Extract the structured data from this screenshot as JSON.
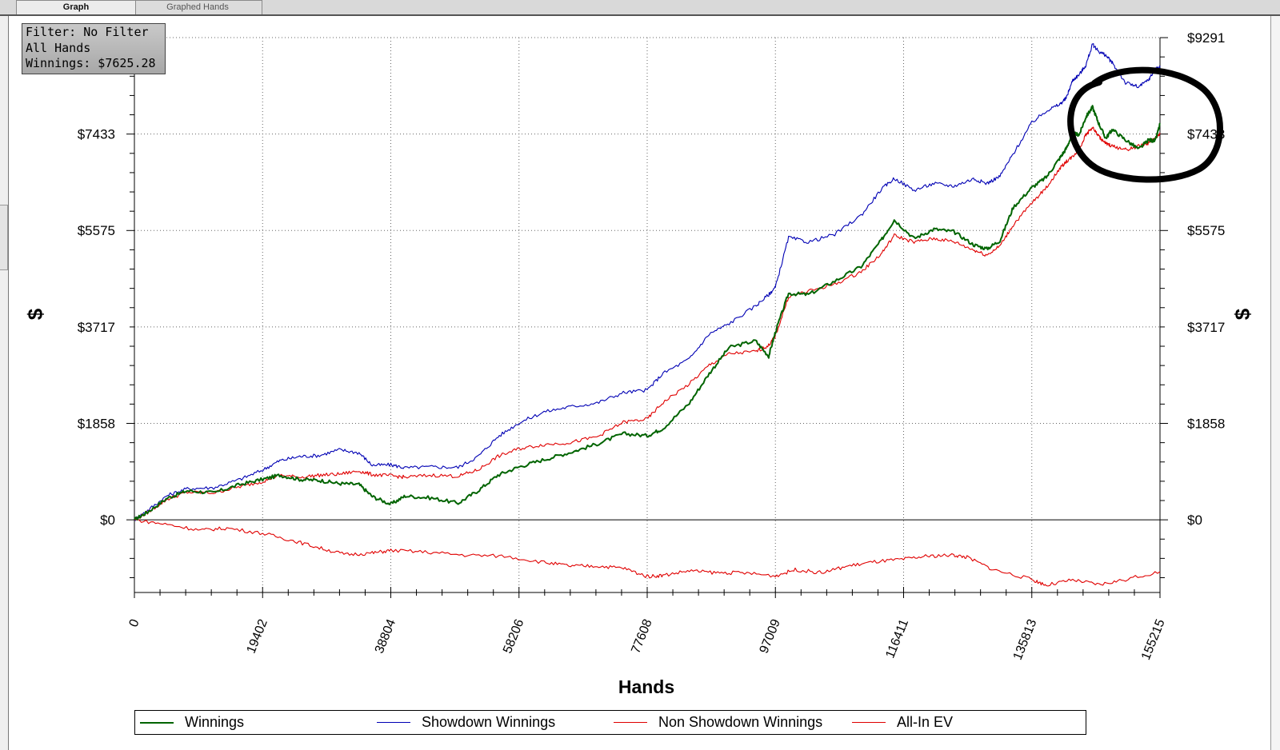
{
  "tabs": [
    {
      "label": "Graph",
      "active": true
    },
    {
      "label": "Graphed Hands",
      "active": false
    }
  ],
  "infobox": {
    "filter": "Filter: No Filter",
    "hands": "All Hands",
    "winnings": "Winnings: $7625.28"
  },
  "chart_data": {
    "type": "line",
    "xlabel": "Hands",
    "ylabel": "$",
    "xlim": [
      0,
      155215
    ],
    "ylim": [
      -1400,
      9291
    ],
    "x_ticks": [
      0,
      19402,
      38804,
      58206,
      77608,
      97009,
      116411,
      135813,
      155215
    ],
    "x_tick_labels": [
      "0",
      "19402",
      "38804",
      "58206",
      "77608",
      "97009",
      "116411",
      "135813",
      "155215"
    ],
    "y_ticks": [
      0,
      1858,
      3717,
      5575,
      7433,
      9291
    ],
    "y_tick_labels": [
      "$0",
      "$1858",
      "$3717",
      "$5575",
      "$7433",
      "$9291"
    ],
    "grid": true,
    "legend_position": "bottom",
    "series": [
      {
        "name": "Winnings",
        "color": "#006400",
        "x": [
          0,
          2000,
          5000,
          8000,
          12000,
          16000,
          19402,
          22000,
          25000,
          28000,
          31000,
          34000,
          36000,
          38804,
          41000,
          45000,
          49000,
          52000,
          55000,
          58206,
          62000,
          66000,
          70000,
          74000,
          77608,
          80000,
          84000,
          87000,
          90000,
          94000,
          96000,
          97009,
          99000,
          102000,
          106000,
          110000,
          113000,
          115000,
          118000,
          121000,
          124000,
          127000,
          129000,
          131000,
          133000,
          135813,
          138000,
          140000,
          141000,
          142000,
          143000,
          144000,
          145000,
          146000,
          147000,
          148000,
          150000,
          152000,
          153500,
          154500,
          155215
        ],
        "y": [
          0,
          150,
          420,
          560,
          520,
          680,
          780,
          860,
          780,
          760,
          700,
          680,
          450,
          300,
          460,
          420,
          320,
          560,
          860,
          1020,
          1160,
          1300,
          1460,
          1660,
          1620,
          1760,
          2250,
          2820,
          3320,
          3450,
          3150,
          3620,
          4360,
          4340,
          4600,
          4880,
          5380,
          5780,
          5420,
          5600,
          5550,
          5300,
          5220,
          5380,
          6020,
          6400,
          6600,
          6960,
          7150,
          7440,
          7420,
          7760,
          7950,
          7620,
          7350,
          7520,
          7320,
          7140,
          7320,
          7300,
          7625
        ]
      },
      {
        "name": "Showdown Winnings",
        "color": "#0000b4",
        "x": [
          0,
          2000,
          5000,
          8000,
          12000,
          16000,
          19402,
          22000,
          25000,
          28000,
          31000,
          34000,
          36000,
          38804,
          41000,
          45000,
          49000,
          52000,
          55000,
          58206,
          62000,
          66000,
          70000,
          74000,
          77608,
          80000,
          84000,
          87000,
          90000,
          94000,
          96000,
          97009,
          99000,
          102000,
          106000,
          110000,
          113000,
          115000,
          118000,
          121000,
          124000,
          127000,
          129000,
          131000,
          133000,
          135813,
          138000,
          140000,
          141000,
          142000,
          143000,
          144000,
          145000,
          146000,
          147000,
          148000,
          150000,
          152000,
          153500,
          154500,
          155215
        ],
        "y": [
          0,
          180,
          470,
          600,
          620,
          780,
          960,
          1140,
          1220,
          1240,
          1350,
          1290,
          1050,
          1060,
          1000,
          1020,
          1010,
          1220,
          1600,
          1870,
          2080,
          2180,
          2250,
          2450,
          2500,
          2820,
          3100,
          3580,
          3780,
          4120,
          4340,
          4480,
          5440,
          5350,
          5500,
          5870,
          6360,
          6580,
          6350,
          6480,
          6430,
          6570,
          6480,
          6620,
          7050,
          7650,
          7880,
          8000,
          8120,
          8470,
          8580,
          8760,
          9160,
          9020,
          8950,
          8800,
          8420,
          8340,
          8480,
          8680,
          8720
        ]
      },
      {
        "name": "Non Showdown Winnings",
        "color": "#e00000",
        "x": [
          0,
          2000,
          5000,
          8000,
          12000,
          16000,
          19402,
          22000,
          25000,
          28000,
          31000,
          34000,
          36000,
          38804,
          41000,
          45000,
          49000,
          52000,
          55000,
          58206,
          62000,
          66000,
          70000,
          74000,
          77608,
          80000,
          84000,
          87000,
          90000,
          94000,
          96000,
          97009,
          99000,
          102000,
          106000,
          110000,
          113000,
          115000,
          118000,
          121000,
          124000,
          127000,
          129000,
          131000,
          133000,
          135813,
          138000,
          140000,
          141000,
          142000,
          143000,
          144000,
          145000,
          146000,
          147000,
          148000,
          150000,
          152000,
          153500,
          154500,
          155215
        ],
        "y": [
          0,
          140,
          400,
          530,
          520,
          640,
          740,
          860,
          820,
          860,
          880,
          940,
          870,
          850,
          820,
          860,
          840,
          960,
          1220,
          1370,
          1450,
          1490,
          1600,
          1880,
          1940,
          2260,
          2620,
          2980,
          3200,
          3240,
          3360,
          3540,
          4300,
          4400,
          4540,
          4780,
          5120,
          5480,
          5350,
          5420,
          5360,
          5200,
          5100,
          5280,
          5680,
          6100,
          6400,
          6760,
          6900,
          7000,
          7150,
          7420,
          7560,
          7380,
          7250,
          7200,
          7130,
          7200,
          7260,
          7350,
          7430
        ]
      },
      {
        "name": "All-In EV",
        "color": "#e00000",
        "x": [
          0,
          5000,
          10000,
          14000,
          19402,
          24000,
          28000,
          32000,
          36000,
          38804,
          44000,
          50000,
          56000,
          62000,
          66000,
          70000,
          74000,
          77608,
          80000,
          84000,
          88000,
          92000,
          97009,
          100000,
          104000,
          108000,
          112000,
          116411,
          120000,
          124000,
          126000,
          130000,
          135813,
          138000,
          142000,
          146000,
          150000,
          155215
        ],
        "y": [
          0,
          -90,
          -200,
          -160,
          -260,
          -400,
          -540,
          -670,
          -640,
          -590,
          -620,
          -680,
          -700,
          -820,
          -890,
          -890,
          -930,
          -1090,
          -1070,
          -980,
          -1020,
          -1020,
          -1080,
          -960,
          -1020,
          -890,
          -810,
          -760,
          -700,
          -680,
          -720,
          -960,
          -1150,
          -1260,
          -1160,
          -1250,
          -1150,
          -1000
        ]
      }
    ]
  },
  "legend": [
    {
      "label": "Winnings",
      "color": "#006400"
    },
    {
      "label": "Showdown Winnings",
      "color": "#0000b4"
    },
    {
      "label": "Non Showdown Winnings",
      "color": "#e00000"
    },
    {
      "label": "All-In EV",
      "color": "#e00000"
    }
  ],
  "annotation": {
    "shape": "hand-drawn circle",
    "color": "#000000"
  }
}
